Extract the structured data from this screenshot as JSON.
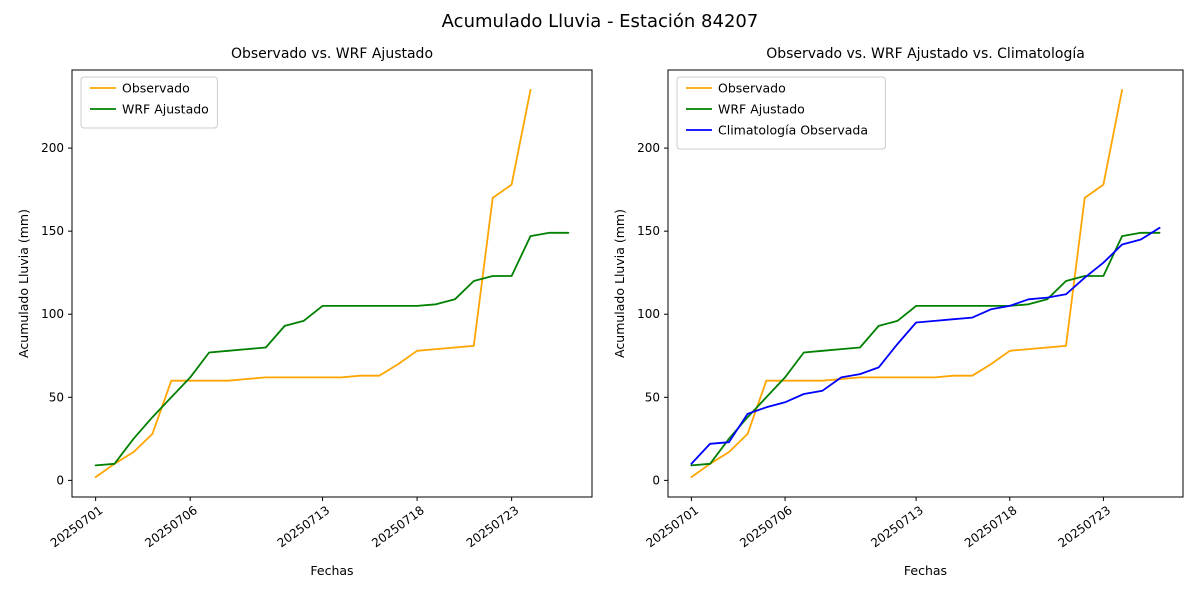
{
  "figure": {
    "title": "Acumulado Lluvia - Estación 84207",
    "background": "#ffffff"
  },
  "chart_data": [
    {
      "type": "line",
      "title": "Observado vs. WRF Ajustado",
      "xlabel": "Fechas",
      "ylabel": "Acumulado Lluvia (mm)",
      "x": [
        "20250701",
        "20250702",
        "20250703",
        "20250704",
        "20250705",
        "20250706",
        "20250707",
        "20250708",
        "20250709",
        "20250710",
        "20250711",
        "20250712",
        "20250713",
        "20250714",
        "20250715",
        "20250716",
        "20250717",
        "20250718",
        "20250719",
        "20250720",
        "20250721",
        "20250722",
        "20250723",
        "20250724",
        "20250725",
        "20250726"
      ],
      "xticks": [
        "20250701",
        "20250706",
        "20250713",
        "20250718",
        "20250723"
      ],
      "yticks": [
        0,
        50,
        100,
        150,
        200
      ],
      "ylim": [
        -10,
        247
      ],
      "grid": false,
      "legend_position": "upper left",
      "series": [
        {
          "name": "Observado",
          "color": "#FFA500",
          "values": [
            2,
            10,
            17,
            28,
            60,
            60,
            60,
            60,
            61,
            62,
            62,
            62,
            62,
            62,
            63,
            63,
            70,
            78,
            79,
            80,
            81,
            170,
            178,
            235,
            null,
            null
          ]
        },
        {
          "name": "WRF Ajustado",
          "color": "#008000",
          "values": [
            9,
            10,
            25,
            38,
            50,
            62,
            77,
            78,
            79,
            80,
            93,
            96,
            105,
            105,
            105,
            105,
            105,
            105,
            106,
            109,
            120,
            123,
            123,
            147,
            149,
            149
          ]
        }
      ]
    },
    {
      "type": "line",
      "title": "Observado vs. WRF Ajustado vs. Climatología",
      "xlabel": "Fechas",
      "ylabel": "Acumulado Lluvia (mm)",
      "x": [
        "20250701",
        "20250702",
        "20250703",
        "20250704",
        "20250705",
        "20250706",
        "20250707",
        "20250708",
        "20250709",
        "20250710",
        "20250711",
        "20250712",
        "20250713",
        "20250714",
        "20250715",
        "20250716",
        "20250717",
        "20250718",
        "20250719",
        "20250720",
        "20250721",
        "20250722",
        "20250723",
        "20250724",
        "20250725",
        "20250726"
      ],
      "xticks": [
        "20250701",
        "20250706",
        "20250713",
        "20250718",
        "20250723"
      ],
      "yticks": [
        0,
        50,
        100,
        150,
        200
      ],
      "ylim": [
        -10,
        247
      ],
      "grid": false,
      "legend_position": "upper left",
      "series": [
        {
          "name": "Observado",
          "color": "#FFA500",
          "values": [
            2,
            10,
            17,
            28,
            60,
            60,
            60,
            60,
            61,
            62,
            62,
            62,
            62,
            62,
            63,
            63,
            70,
            78,
            79,
            80,
            81,
            170,
            178,
            235,
            null,
            null
          ]
        },
        {
          "name": "WRF Ajustado",
          "color": "#008000",
          "values": [
            9,
            10,
            25,
            38,
            50,
            62,
            77,
            78,
            79,
            80,
            93,
            96,
            105,
            105,
            105,
            105,
            105,
            105,
            106,
            109,
            120,
            123,
            123,
            147,
            149,
            149
          ]
        },
        {
          "name": "Climatología Observada",
          "color": "#0000FF",
          "values": [
            10,
            22,
            23,
            40,
            44,
            47,
            52,
            54,
            62,
            64,
            68,
            82,
            95,
            96,
            97,
            98,
            103,
            105,
            109,
            110,
            112,
            122,
            131,
            142,
            145,
            152
          ]
        }
      ]
    }
  ]
}
